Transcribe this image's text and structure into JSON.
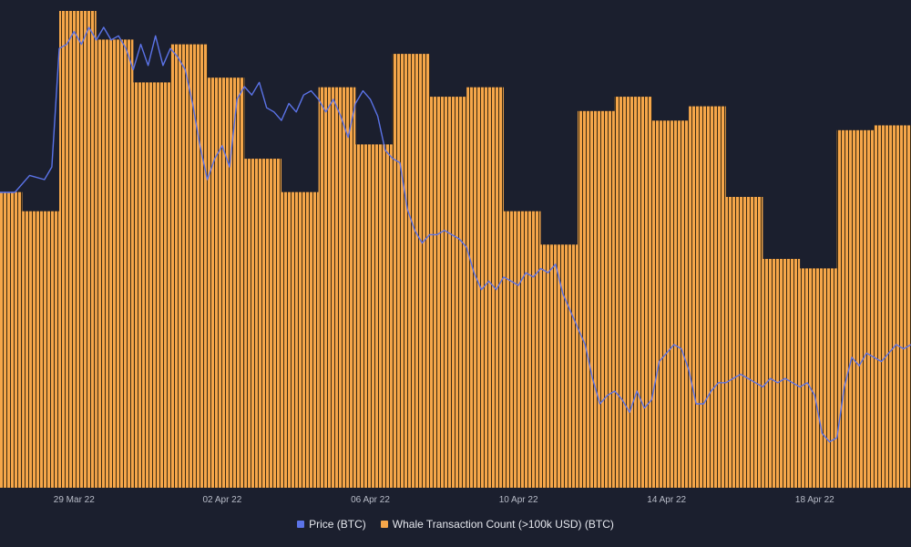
{
  "chart_data": {
    "type": "bar",
    "x_tick_labels": [
      "29 Mar 22",
      "02 Apr 22",
      "06 Apr 22",
      "10 Apr 22",
      "14 Apr 22",
      "18 Apr 22"
    ],
    "x_range_days": [
      0,
      24.6
    ],
    "x_tick_days": [
      2,
      6,
      10,
      14,
      18,
      22
    ],
    "series": [
      {
        "name": "Whale Transaction Count (>100k USD) (BTC)",
        "type": "bar",
        "color": "#f5a64a",
        "relative_levels": [
          {
            "start_day": 0.0,
            "end_day": 0.6,
            "value": 0.62
          },
          {
            "start_day": 0.6,
            "end_day": 1.6,
            "value": 0.58
          },
          {
            "start_day": 1.6,
            "end_day": 2.6,
            "value": 1.0
          },
          {
            "start_day": 2.6,
            "end_day": 3.6,
            "value": 0.94
          },
          {
            "start_day": 3.6,
            "end_day": 4.6,
            "value": 0.85
          },
          {
            "start_day": 4.6,
            "end_day": 5.6,
            "value": 0.93
          },
          {
            "start_day": 5.6,
            "end_day": 6.6,
            "value": 0.86
          },
          {
            "start_day": 6.6,
            "end_day": 7.6,
            "value": 0.69
          },
          {
            "start_day": 7.6,
            "end_day": 8.6,
            "value": 0.62
          },
          {
            "start_day": 8.6,
            "end_day": 9.6,
            "value": 0.84
          },
          {
            "start_day": 9.6,
            "end_day": 10.6,
            "value": 0.72
          },
          {
            "start_day": 10.6,
            "end_day": 11.6,
            "value": 0.91
          },
          {
            "start_day": 11.6,
            "end_day": 12.6,
            "value": 0.82
          },
          {
            "start_day": 12.6,
            "end_day": 13.6,
            "value": 0.84
          },
          {
            "start_day": 13.6,
            "end_day": 14.6,
            "value": 0.58
          },
          {
            "start_day": 14.6,
            "end_day": 15.6,
            "value": 0.51
          },
          {
            "start_day": 15.6,
            "end_day": 16.6,
            "value": 0.79
          },
          {
            "start_day": 16.6,
            "end_day": 17.6,
            "value": 0.82
          },
          {
            "start_day": 17.6,
            "end_day": 18.6,
            "value": 0.77
          },
          {
            "start_day": 18.6,
            "end_day": 19.6,
            "value": 0.8
          },
          {
            "start_day": 19.6,
            "end_day": 20.6,
            "value": 0.61
          },
          {
            "start_day": 20.6,
            "end_day": 21.6,
            "value": 0.48
          },
          {
            "start_day": 21.6,
            "end_day": 22.6,
            "value": 0.46
          },
          {
            "start_day": 22.6,
            "end_day": 23.6,
            "value": 0.75
          },
          {
            "start_day": 23.6,
            "end_day": 24.6,
            "value": 0.76
          }
        ]
      },
      {
        "name": "Price (BTC)",
        "type": "line",
        "color": "#5b73e8",
        "relative_points": [
          [
            0.0,
            0.61
          ],
          [
            0.4,
            0.61
          ],
          [
            0.8,
            0.65
          ],
          [
            1.2,
            0.64
          ],
          [
            1.4,
            0.67
          ],
          [
            1.6,
            0.95
          ],
          [
            1.8,
            0.96
          ],
          [
            2.0,
            0.99
          ],
          [
            2.2,
            0.96
          ],
          [
            2.4,
            1.0
          ],
          [
            2.6,
            0.97
          ],
          [
            2.8,
            1.0
          ],
          [
            3.0,
            0.97
          ],
          [
            3.2,
            0.98
          ],
          [
            3.4,
            0.95
          ],
          [
            3.6,
            0.9
          ],
          [
            3.8,
            0.96
          ],
          [
            4.0,
            0.91
          ],
          [
            4.2,
            0.98
          ],
          [
            4.4,
            0.91
          ],
          [
            4.6,
            0.95
          ],
          [
            4.8,
            0.93
          ],
          [
            5.0,
            0.9
          ],
          [
            5.2,
            0.82
          ],
          [
            5.4,
            0.72
          ],
          [
            5.6,
            0.64
          ],
          [
            5.8,
            0.69
          ],
          [
            6.0,
            0.72
          ],
          [
            6.2,
            0.67
          ],
          [
            6.4,
            0.83
          ],
          [
            6.6,
            0.86
          ],
          [
            6.8,
            0.84
          ],
          [
            7.0,
            0.87
          ],
          [
            7.2,
            0.81
          ],
          [
            7.4,
            0.8
          ],
          [
            7.6,
            0.78
          ],
          [
            7.8,
            0.82
          ],
          [
            8.0,
            0.8
          ],
          [
            8.2,
            0.84
          ],
          [
            8.4,
            0.85
          ],
          [
            8.6,
            0.83
          ],
          [
            8.8,
            0.8
          ],
          [
            9.0,
            0.83
          ],
          [
            9.2,
            0.79
          ],
          [
            9.4,
            0.74
          ],
          [
            9.6,
            0.82
          ],
          [
            9.8,
            0.85
          ],
          [
            10.0,
            0.83
          ],
          [
            10.2,
            0.79
          ],
          [
            10.4,
            0.71
          ],
          [
            10.6,
            0.69
          ],
          [
            10.8,
            0.68
          ],
          [
            11.0,
            0.57
          ],
          [
            11.2,
            0.52
          ],
          [
            11.4,
            0.49
          ],
          [
            11.6,
            0.51
          ],
          [
            11.8,
            0.51
          ],
          [
            12.0,
            0.52
          ],
          [
            12.2,
            0.51
          ],
          [
            12.4,
            0.5
          ],
          [
            12.6,
            0.48
          ],
          [
            12.8,
            0.42
          ],
          [
            13.0,
            0.38
          ],
          [
            13.2,
            0.4
          ],
          [
            13.4,
            0.38
          ],
          [
            13.6,
            0.41
          ],
          [
            13.8,
            0.4
          ],
          [
            14.0,
            0.39
          ],
          [
            14.2,
            0.42
          ],
          [
            14.4,
            0.41
          ],
          [
            14.6,
            0.43
          ],
          [
            14.8,
            0.42
          ],
          [
            15.0,
            0.44
          ],
          [
            15.2,
            0.37
          ],
          [
            15.4,
            0.33
          ],
          [
            15.6,
            0.29
          ],
          [
            15.8,
            0.25
          ],
          [
            16.0,
            0.17
          ],
          [
            16.2,
            0.11
          ],
          [
            16.4,
            0.13
          ],
          [
            16.6,
            0.14
          ],
          [
            16.8,
            0.12
          ],
          [
            17.0,
            0.09
          ],
          [
            17.2,
            0.14
          ],
          [
            17.4,
            0.1
          ],
          [
            17.6,
            0.12
          ],
          [
            17.8,
            0.21
          ],
          [
            18.0,
            0.23
          ],
          [
            18.2,
            0.25
          ],
          [
            18.4,
            0.24
          ],
          [
            18.6,
            0.19
          ],
          [
            18.8,
            0.11
          ],
          [
            19.0,
            0.11
          ],
          [
            19.2,
            0.14
          ],
          [
            19.4,
            0.16
          ],
          [
            19.6,
            0.16
          ],
          [
            19.8,
            0.17
          ],
          [
            20.0,
            0.18
          ],
          [
            20.2,
            0.17
          ],
          [
            20.4,
            0.16
          ],
          [
            20.6,
            0.15
          ],
          [
            20.8,
            0.17
          ],
          [
            21.0,
            0.16
          ],
          [
            21.2,
            0.17
          ],
          [
            21.4,
            0.16
          ],
          [
            21.6,
            0.15
          ],
          [
            21.8,
            0.16
          ],
          [
            22.0,
            0.13
          ],
          [
            22.2,
            0.04
          ],
          [
            22.4,
            0.02
          ],
          [
            22.6,
            0.03
          ],
          [
            22.8,
            0.15
          ],
          [
            23.0,
            0.22
          ],
          [
            23.2,
            0.2
          ],
          [
            23.4,
            0.23
          ],
          [
            23.6,
            0.22
          ],
          [
            23.8,
            0.21
          ],
          [
            24.0,
            0.23
          ],
          [
            24.2,
            0.25
          ],
          [
            24.4,
            0.24
          ],
          [
            24.6,
            0.25
          ]
        ]
      }
    ],
    "legend": {
      "placement": "bottom-center"
    },
    "grid": false
  },
  "legend_labels": {
    "price": "Price (BTC)",
    "whale": "Whale Transaction Count (>100k USD) (BTC)"
  },
  "colors": {
    "background": "#1b1f2e",
    "bar": "#f5a64a",
    "bar_edge": "#3a2a12",
    "price": "#5b73e8"
  }
}
